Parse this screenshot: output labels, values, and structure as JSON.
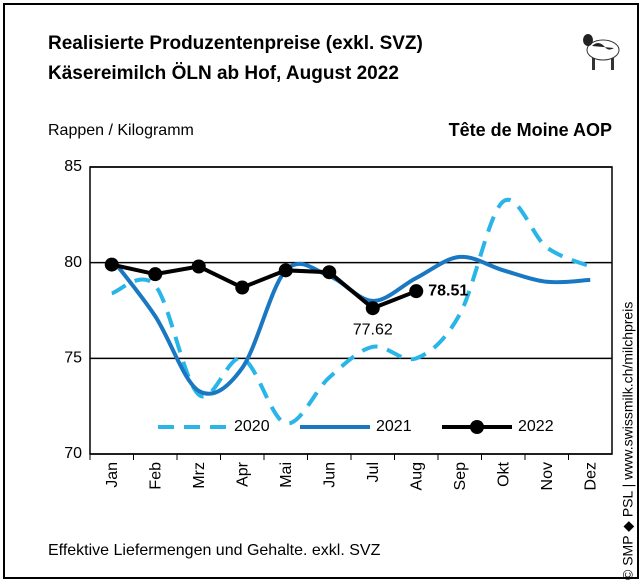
{
  "chart_data": {
    "type": "line",
    "title": "Realisierte Produzentenpreise (exkl. SVZ)",
    "subtitle": "Käsereimilch ÖLN ab Hof, August 2022",
    "y_label": "Rappen / Kilogramm",
    "product": "Tête de Moine AOP",
    "footnote": "Effektive Liefermengen und Gehalte. exkl. SVZ",
    "source": "© SMP ◆ PSL | www.swissmilk.ch/milchpreis",
    "categories": [
      "Jan",
      "Feb",
      "Mrz",
      "Apr",
      "Mai",
      "Jun",
      "Jul",
      "Aug",
      "Sep",
      "Okt",
      "Nov",
      "Dez"
    ],
    "series": [
      {
        "name": "2020",
        "color": "#29b5e8",
        "style": "dashed",
        "values": [
          78.4,
          78.8,
          73.1,
          75.0,
          71.6,
          74.0,
          75.6,
          75.0,
          77.3,
          83.2,
          80.8,
          79.8
        ]
      },
      {
        "name": "2021",
        "color": "#1a78c2",
        "style": "solid",
        "values": [
          80.2,
          77.2,
          73.3,
          74.5,
          79.6,
          79.3,
          78.0,
          79.2,
          80.3,
          79.6,
          79.0,
          79.1
        ]
      },
      {
        "name": "2022",
        "color": "#000000",
        "style": "markers",
        "values": [
          79.9,
          79.4,
          79.8,
          78.7,
          79.6,
          79.5,
          77.62,
          78.51,
          null,
          null,
          null,
          null
        ],
        "value_labels": [
          null,
          null,
          null,
          null,
          null,
          null,
          "77.62",
          "78.51",
          null,
          null,
          null,
          null
        ]
      }
    ],
    "ylim": [
      70,
      85
    ],
    "yticks": [
      70,
      75,
      80,
      85
    ],
    "grid": true
  }
}
